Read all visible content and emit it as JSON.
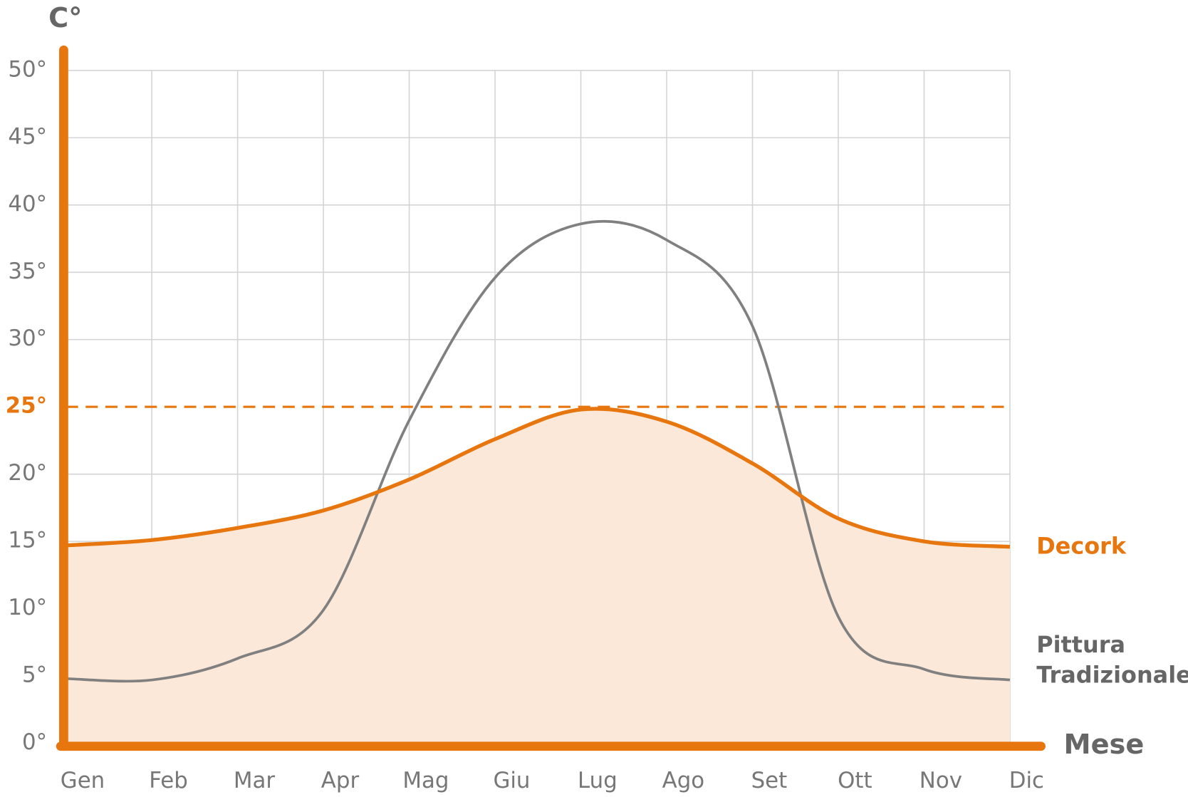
{
  "chart_data": {
    "type": "line",
    "y_label": "C°",
    "x_label": "Mese",
    "categories": [
      "Gen",
      "Feb",
      "Mar",
      "Apr",
      "Mag",
      "Giu",
      "Lug",
      "Ago",
      "Set",
      "Ott",
      "Nov",
      "Dic"
    ],
    "series": [
      {
        "name": "Decork",
        "color": "#e8760f",
        "fill": "#fbe8d9",
        "values": [
          14.7,
          15.1,
          16.0,
          17.3,
          19.6,
          22.6,
          24.8,
          23.9,
          20.8,
          16.7,
          15.0,
          14.6
        ]
      },
      {
        "name": "Pittura Tradizionale",
        "color": "#808080",
        "values": [
          4.8,
          4.7,
          6.3,
          9.9,
          24.0,
          34.6,
          38.6,
          37.4,
          31.0,
          9.4,
          5.5,
          4.7
        ]
      }
    ],
    "ylim": [
      0,
      50
    ],
    "yticks": [
      {
        "value": 0,
        "label": "0°"
      },
      {
        "value": 5,
        "label": "5°"
      },
      {
        "value": 10,
        "label": "10°"
      },
      {
        "value": 15,
        "label": "15°"
      },
      {
        "value": 20,
        "label": "20°"
      },
      {
        "value": 25,
        "label": "25°"
      },
      {
        "value": 30,
        "label": "30°"
      },
      {
        "value": 35,
        "label": "35°"
      },
      {
        "value": 40,
        "label": "40°"
      },
      {
        "value": 45,
        "label": "45°"
      },
      {
        "value": 50,
        "label": "50°"
      }
    ],
    "reference_line": {
      "value": 25,
      "color": "#e8760f"
    },
    "grid": true
  }
}
